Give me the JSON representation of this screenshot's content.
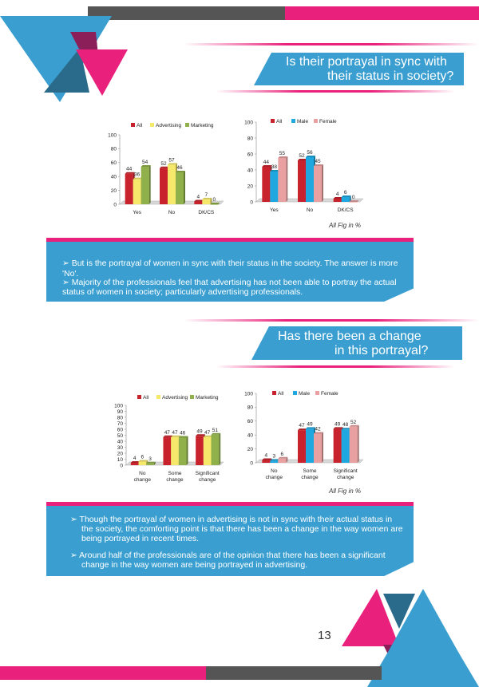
{
  "colors": {
    "blue": "#3a9fd0",
    "magenta": "#e9217c",
    "dark_grey": "#555555",
    "navy": "#2a6a8a",
    "purple": "#8a1f5a",
    "red": "#c8232c",
    "yellow": "#f5e86a",
    "green": "#8fb04a",
    "cyan": "#1fa8e0",
    "pink": "#e8a0a0"
  },
  "section1": {
    "title_line1": "Is their portrayal in sync with",
    "title_line2": "their status in society?",
    "note": "All Fig in %",
    "bullet1": "➢  But is the portrayal of women in sync with their status in the society. The answer is more 'No'.",
    "bullet2_line1": "➢  Majority of the professionals feel that advertising has not been able to portray the actual",
    "bullet2_line2": "status of women in society; particularly advertising professionals."
  },
  "section2": {
    "title_line1": "Has there been a change",
    "title_line2": "in this portrayal?",
    "note": "All Fig in %",
    "bullet1_line1": "➢  Though the portrayal of women in advertising is not in sync with their actual status in",
    "bullet1_line2": "the society, the comforting point is that there has been a change in the way women are",
    "bullet1_line3": "being portrayed in recent times.",
    "bullet2_line1": "➢  Around half of the professionals are of the opinion that there has been a significant",
    "bullet2_line2": "change in the way women are being portrayed in advertising."
  },
  "page_number": "13",
  "chart_data": [
    {
      "type": "bar",
      "categories": [
        "Yes",
        "No",
        "DK/CS"
      ],
      "series": [
        {
          "name": "All",
          "values": [
            44,
            52,
            4
          ]
        },
        {
          "name": "Advertising",
          "values": [
            36,
            57,
            7
          ]
        },
        {
          "name": "Marketing",
          "values": [
            54,
            46,
            0
          ]
        }
      ],
      "yticks": [
        0,
        20,
        40,
        60,
        80,
        100
      ],
      "ylim": [
        0,
        100
      ],
      "legend": "top"
    },
    {
      "type": "bar",
      "categories": [
        "Yes",
        "No",
        "DK/CS"
      ],
      "series": [
        {
          "name": "All",
          "values": [
            44,
            52,
            4
          ]
        },
        {
          "name": "Male",
          "values": [
            38,
            56,
            6
          ]
        },
        {
          "name": "Female",
          "values": [
            55,
            45,
            0
          ]
        }
      ],
      "yticks": [
        0,
        20,
        40,
        60,
        80,
        100
      ],
      "ylim": [
        0,
        100
      ],
      "legend": "top"
    },
    {
      "type": "bar",
      "categories": [
        "No change",
        "Some change",
        "Significant change"
      ],
      "series": [
        {
          "name": "All",
          "values": [
            4,
            47,
            49
          ]
        },
        {
          "name": "Advertising",
          "values": [
            6,
            47,
            47
          ]
        },
        {
          "name": "Marketing",
          "values": [
            3,
            46,
            51
          ]
        }
      ],
      "yticks": [
        0,
        10,
        20,
        30,
        40,
        50,
        60,
        70,
        80,
        90,
        100
      ],
      "ylim": [
        0,
        100
      ],
      "legend": "top"
    },
    {
      "type": "bar",
      "categories": [
        "No change",
        "Some change",
        "Significant change"
      ],
      "series": [
        {
          "name": "All",
          "values": [
            4,
            47,
            49
          ]
        },
        {
          "name": "Male",
          "values": [
            3,
            49,
            48
          ]
        },
        {
          "name": "Female",
          "values": [
            6,
            42,
            52
          ]
        }
      ],
      "yticks": [
        0,
        20,
        40,
        60,
        80,
        100
      ],
      "ylim": [
        0,
        100
      ],
      "legend": "top"
    }
  ]
}
